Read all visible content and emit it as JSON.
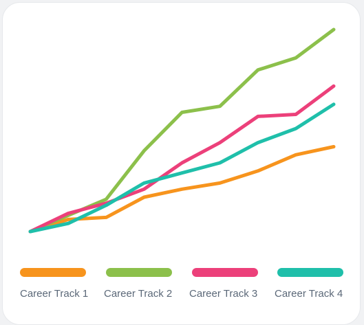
{
  "chart_data": {
    "type": "line",
    "title": "",
    "xlabel": "",
    "ylabel": "",
    "x": [
      0,
      1,
      2,
      3,
      4,
      5,
      6,
      7,
      8
    ],
    "ylim": [
      0,
      100
    ],
    "grid": false,
    "legend_position": "bottom",
    "series": [
      {
        "name": "Career Track 1",
        "color": "#f7941d",
        "values": [
          0,
          6,
          7,
          17,
          21,
          24,
          30,
          38,
          42
        ]
      },
      {
        "name": "Career Track 2",
        "color": "#8cc04b",
        "values": [
          0,
          8,
          16,
          40,
          59,
          62,
          80,
          86,
          100
        ]
      },
      {
        "name": "Career Track 3",
        "color": "#ec407a",
        "values": [
          0,
          9,
          14,
          21,
          34,
          44,
          57,
          58,
          72
        ]
      },
      {
        "name": "Career Track 4",
        "color": "#1fbfaa",
        "values": [
          0,
          4,
          13,
          24,
          29,
          34,
          44,
          51,
          63
        ]
      }
    ]
  }
}
